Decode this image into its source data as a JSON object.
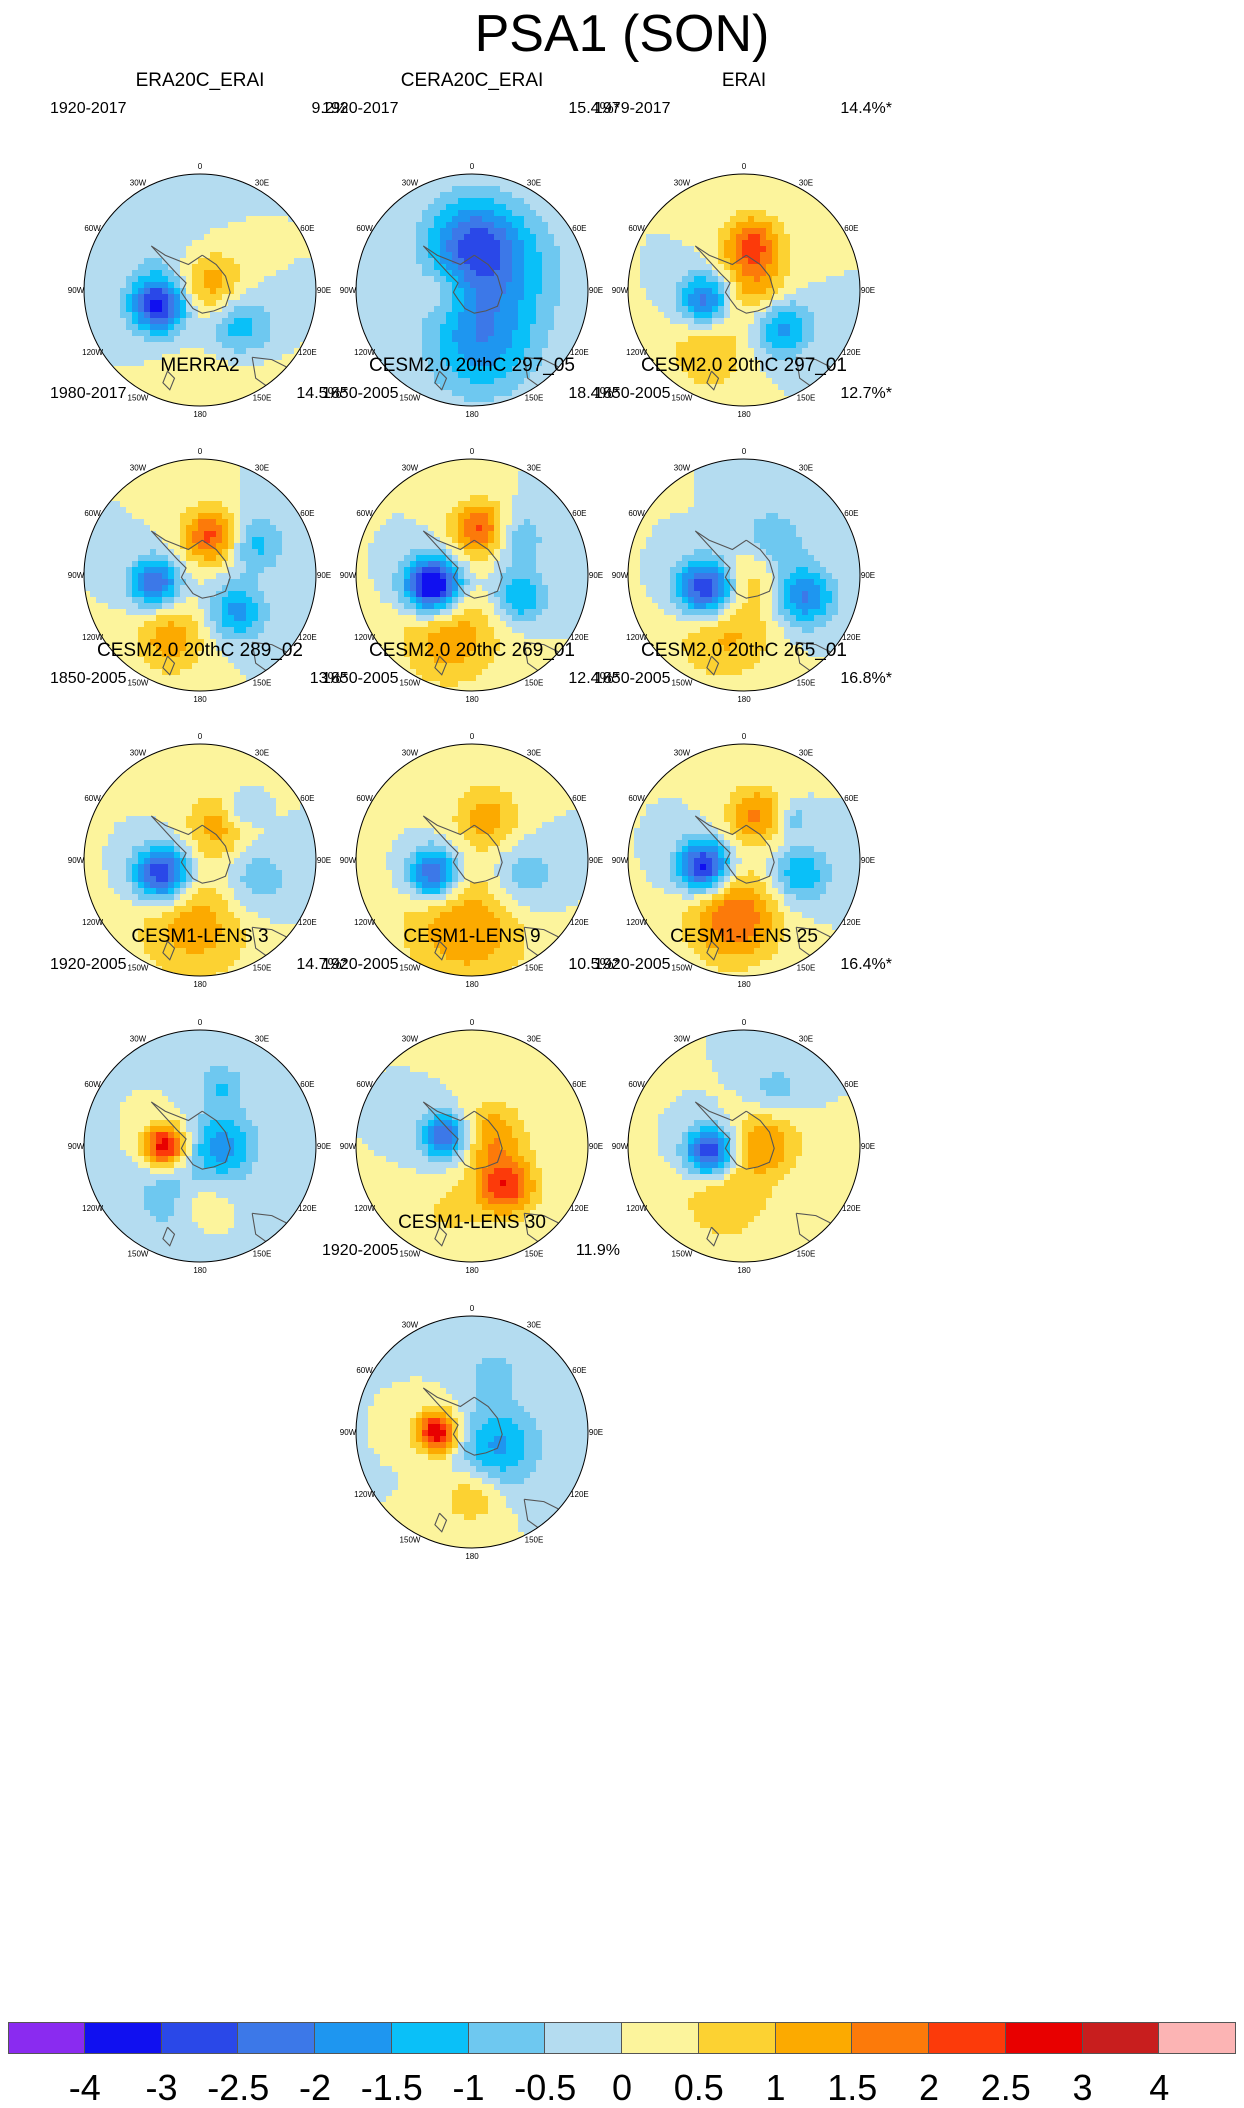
{
  "figure_title": "PSA1 (SON)",
  "map_labels": {
    "lon_0": "0",
    "lon_30e": "30E",
    "lon_60e": "60E",
    "lon_90e": "90E",
    "lon_120e": "120E",
    "lon_150e": "150E",
    "lon_180": "180",
    "lon_150w": "150W",
    "lon_120w": "120W",
    "lon_90w": "90W",
    "lon_60w": "60W",
    "lon_30w": "30W"
  },
  "colorbar": {
    "colors": [
      "#8a2bf0",
      "#1010f0",
      "#2a48e8",
      "#3c78e8",
      "#1e96f0",
      "#0ac0f8",
      "#6ec8f0",
      "#b4dcf0",
      "#fcf49c",
      "#fcd232",
      "#fcaa00",
      "#fc7a0a",
      "#fc3a0a",
      "#e80000",
      "#c81e1e",
      "#fcb4b4"
    ],
    "tick_labels": [
      "-4",
      "-3",
      "-2.5",
      "-2",
      "-1.5",
      "-1",
      "-0.5",
      "0",
      "0.5",
      "1",
      "1.5",
      "2",
      "2.5",
      "3",
      "4"
    ]
  },
  "chart_data": {
    "type": "heatmap",
    "title": "PSA1 (SON)",
    "projection": "south polar stereographic",
    "contour_levels": [
      -4,
      -3,
      -2.5,
      -2,
      -1.5,
      -1,
      -0.5,
      0,
      0.5,
      1,
      1.5,
      2,
      2.5,
      3,
      4
    ],
    "panels": [
      {
        "title": "ERA20C_ERAI",
        "period": "1920-2017",
        "variance": "9.2%",
        "anomalies": [
          {
            "lon": -110,
            "r": 0.38,
            "amp": -3.3,
            "size": 0.17
          },
          {
            "lon": 75,
            "r": 0.1,
            "amp": 1.5,
            "size": 0.22
          },
          {
            "lon": 135,
            "r": 0.45,
            "amp": -1.7,
            "size": 0.22
          },
          {
            "lon": 160,
            "r": 0.7,
            "amp": 0.6,
            "size": 0.3
          },
          {
            "lon": -40,
            "r": 0.5,
            "amp": -0.4,
            "size": 0.3
          }
        ]
      },
      {
        "title": "CERA20C_ERAI",
        "period": "1920-2017",
        "variance": "15.4%*",
        "anomalies": [
          {
            "lon": 0,
            "r": 0.4,
            "amp": -2.2,
            "size": 0.28
          },
          {
            "lon": 170,
            "r": 0.45,
            "amp": -1.8,
            "size": 0.32
          },
          {
            "lon": -90,
            "r": 0.25,
            "amp": 0.7,
            "size": 0.15
          },
          {
            "lon": 60,
            "r": 0.35,
            "amp": -1.1,
            "size": 0.35
          }
        ]
      },
      {
        "title": "ERAI",
        "period": "1979-2017",
        "variance": "14.4%*",
        "anomalies": [
          {
            "lon": -105,
            "r": 0.35,
            "amp": -2.4,
            "size": 0.16
          },
          {
            "lon": 10,
            "r": 0.4,
            "amp": 2.1,
            "size": 0.18
          },
          {
            "lon": 135,
            "r": 0.45,
            "amp": -1.8,
            "size": 0.18
          },
          {
            "lon": 90,
            "r": 0.1,
            "amp": 1.2,
            "size": 0.2
          },
          {
            "lon": -150,
            "r": 0.6,
            "amp": 1.0,
            "size": 0.25
          }
        ]
      },
      {
        "title": "MERRA2",
        "period": "1980-2017",
        "variance": "14.5%*",
        "anomalies": [
          {
            "lon": -100,
            "r": 0.4,
            "amp": -2.6,
            "size": 0.15
          },
          {
            "lon": 15,
            "r": 0.35,
            "amp": 2.2,
            "size": 0.17
          },
          {
            "lon": 135,
            "r": 0.45,
            "amp": -1.7,
            "size": 0.17
          },
          {
            "lon": -155,
            "r": 0.6,
            "amp": 1.3,
            "size": 0.22
          },
          {
            "lon": 60,
            "r": 0.55,
            "amp": -1.2,
            "size": 0.18
          }
        ]
      },
      {
        "title": "CESM2.0 20thC 297_05",
        "period": "1850-2005",
        "variance": "18.4%*",
        "anomalies": [
          {
            "lon": -105,
            "r": 0.35,
            "amp": -4.2,
            "size": 0.17
          },
          {
            "lon": 10,
            "r": 0.4,
            "amp": 2.2,
            "size": 0.17
          },
          {
            "lon": 115,
            "r": 0.45,
            "amp": -1.6,
            "size": 0.16
          },
          {
            "lon": -160,
            "r": 0.55,
            "amp": 1.4,
            "size": 0.3
          },
          {
            "lon": 50,
            "r": 0.5,
            "amp": -1.0,
            "size": 0.17
          }
        ]
      },
      {
        "title": "CESM2.0 20thC 297_01",
        "period": "1850-2005",
        "variance": "12.7%*",
        "anomalies": [
          {
            "lon": -110,
            "r": 0.35,
            "amp": -3.4,
            "size": 0.18
          },
          {
            "lon": 110,
            "r": 0.55,
            "amp": -2.1,
            "size": 0.18
          },
          {
            "lon": 40,
            "r": 0.35,
            "amp": -1.2,
            "size": 0.2
          },
          {
            "lon": -160,
            "r": 0.5,
            "amp": 1.2,
            "size": 0.3
          },
          {
            "lon": 60,
            "r": 0.1,
            "amp": 0.9,
            "size": 0.2
          }
        ]
      },
      {
        "title": "CESM2.0 20thC 289_02",
        "period": "1850-2005",
        "variance": "13%*",
        "anomalies": [
          {
            "lon": -110,
            "r": 0.35,
            "amp": -3.3,
            "size": 0.17
          },
          {
            "lon": -175,
            "r": 0.55,
            "amp": 1.3,
            "size": 0.35
          },
          {
            "lon": 30,
            "r": 0.35,
            "amp": 1.3,
            "size": 0.2
          },
          {
            "lon": 110,
            "r": 0.5,
            "amp": -1.0,
            "size": 0.22
          },
          {
            "lon": 40,
            "r": 0.55,
            "amp": -1.0,
            "size": 0.12
          }
        ]
      },
      {
        "title": "CESM2.0 20thC 269_01",
        "period": "1850-2005",
        "variance": "12.4%*",
        "anomalies": [
          {
            "lon": -110,
            "r": 0.35,
            "amp": -3.0,
            "size": 0.16
          },
          {
            "lon": -175,
            "r": 0.55,
            "amp": 1.5,
            "size": 0.38
          },
          {
            "lon": 20,
            "r": 0.4,
            "amp": 1.2,
            "size": 0.2
          },
          {
            "lon": 110,
            "r": 0.45,
            "amp": -1.1,
            "size": 0.22
          }
        ]
      },
      {
        "title": "CESM2.0 20thC 265_01",
        "period": "1850-2005",
        "variance": "16.8%*",
        "anomalies": [
          {
            "lon": -100,
            "r": 0.35,
            "amp": -3.4,
            "size": 0.16
          },
          {
            "lon": -170,
            "r": 0.5,
            "amp": 2.0,
            "size": 0.28
          },
          {
            "lon": 15,
            "r": 0.4,
            "amp": 1.6,
            "size": 0.18
          },
          {
            "lon": 105,
            "r": 0.5,
            "amp": -1.5,
            "size": 0.18
          },
          {
            "lon": 50,
            "r": 0.55,
            "amp": -0.9,
            "size": 0.1
          }
        ]
      },
      {
        "title": "CESM1-LENS 3",
        "period": "1920-2005",
        "variance": "14.7%*",
        "anomalies": [
          {
            "lon": -90,
            "r": 0.3,
            "amp": 3.0,
            "size": 0.13
          },
          {
            "lon": 90,
            "r": 0.2,
            "amp": -1.7,
            "size": 0.2
          },
          {
            "lon": 20,
            "r": 0.55,
            "amp": -1.0,
            "size": 0.14
          },
          {
            "lon": 180,
            "r": 0.5,
            "amp": 0.7,
            "size": 0.15
          },
          {
            "lon": -150,
            "r": 0.5,
            "amp": -0.8,
            "size": 0.25
          }
        ]
      },
      {
        "title": "CESM1-LENS 9",
        "period": "1920-2005",
        "variance": "10.5%*",
        "anomalies": [
          {
            "lon": -70,
            "r": 0.25,
            "amp": -2.6,
            "size": 0.14
          },
          {
            "lon": 140,
            "r": 0.45,
            "amp": 2.4,
            "size": 0.18
          },
          {
            "lon": 60,
            "r": 0.2,
            "amp": 1.4,
            "size": 0.2
          },
          {
            "lon": -160,
            "r": 0.6,
            "amp": 0.6,
            "size": 0.2
          }
        ]
      },
      {
        "title": "CESM1-LENS 25",
        "period": "1920-2005",
        "variance": "16.4%*",
        "anomalies": [
          {
            "lon": -100,
            "r": 0.3,
            "amp": -3.2,
            "size": 0.15
          },
          {
            "lon": 80,
            "r": 0.2,
            "amp": 1.4,
            "size": 0.2
          },
          {
            "lon": -160,
            "r": 0.45,
            "amp": 1.0,
            "size": 0.28
          },
          {
            "lon": 30,
            "r": 0.55,
            "amp": -0.8,
            "size": 0.16
          }
        ]
      },
      {
        "title": "CESM1-LENS 30",
        "period": "1920-2005",
        "variance": "11.9%",
        "anomalies": [
          {
            "lon": -90,
            "r": 0.3,
            "amp": 3.0,
            "size": 0.13
          },
          {
            "lon": 120,
            "r": 0.25,
            "amp": -1.6,
            "size": 0.25
          },
          {
            "lon": 180,
            "r": 0.55,
            "amp": 1.0,
            "size": 0.18
          },
          {
            "lon": 20,
            "r": 0.55,
            "amp": -0.8,
            "size": 0.15
          }
        ]
      }
    ]
  }
}
